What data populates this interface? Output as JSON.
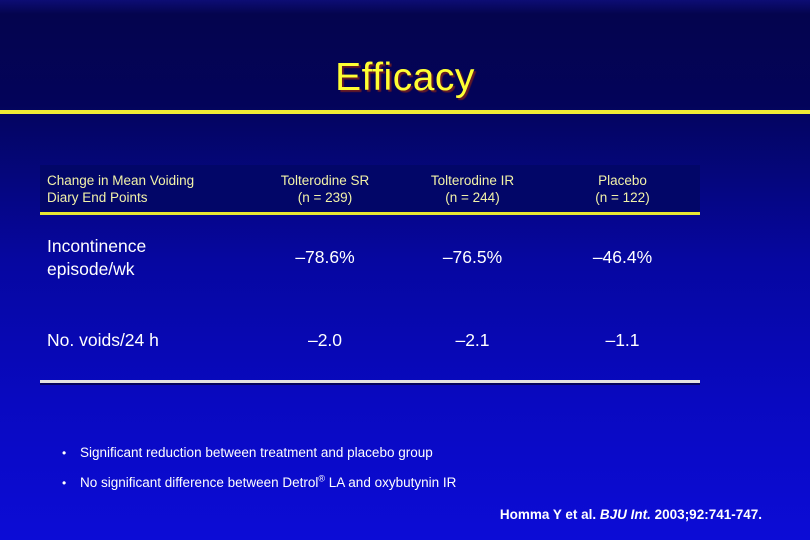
{
  "slide": {
    "title": "Efficacy"
  },
  "table": {
    "columns": [
      {
        "line1": "Change in Mean Voiding",
        "line2": "Diary End Points"
      },
      {
        "line1": "Tolterodine SR",
        "line2": "(n = 239)"
      },
      {
        "line1": "Tolterodine IR",
        "line2": "(n = 244)"
      },
      {
        "line1": "Placebo",
        "line2": "(n = 122)"
      }
    ],
    "rows": [
      {
        "label": "Incontinence episode/wk",
        "values": [
          "–78.6%",
          "–76.5%",
          "–46.4%"
        ]
      },
      {
        "label": "No. voids/24 h",
        "values": [
          "–2.0",
          "–2.1",
          "–1.1"
        ]
      }
    ]
  },
  "bullets": {
    "marker": "•",
    "items": [
      {
        "text": "Significant reduction between treatment and placebo group"
      },
      {
        "pre": "No significant difference between Detrol",
        "sup": "®",
        "post": " LA and oxybutynin IR"
      }
    ]
  },
  "citation": {
    "part1": "Homma Y et al. ",
    "journal": "BJU Int.",
    "part2": " 2003;92:741-747."
  },
  "colors": {
    "title_yellow": "#ffff33",
    "rule_yellow": "#f2ec34",
    "header_band_blue": "#020668",
    "header_text_pale_yellow": "#f2f2a8",
    "body_text_white": "#ffffff",
    "background_top_navy": "#04044e",
    "background_bottom_blue": "#0c0cd6",
    "table_bottom_rule": "#e2e2e2"
  }
}
